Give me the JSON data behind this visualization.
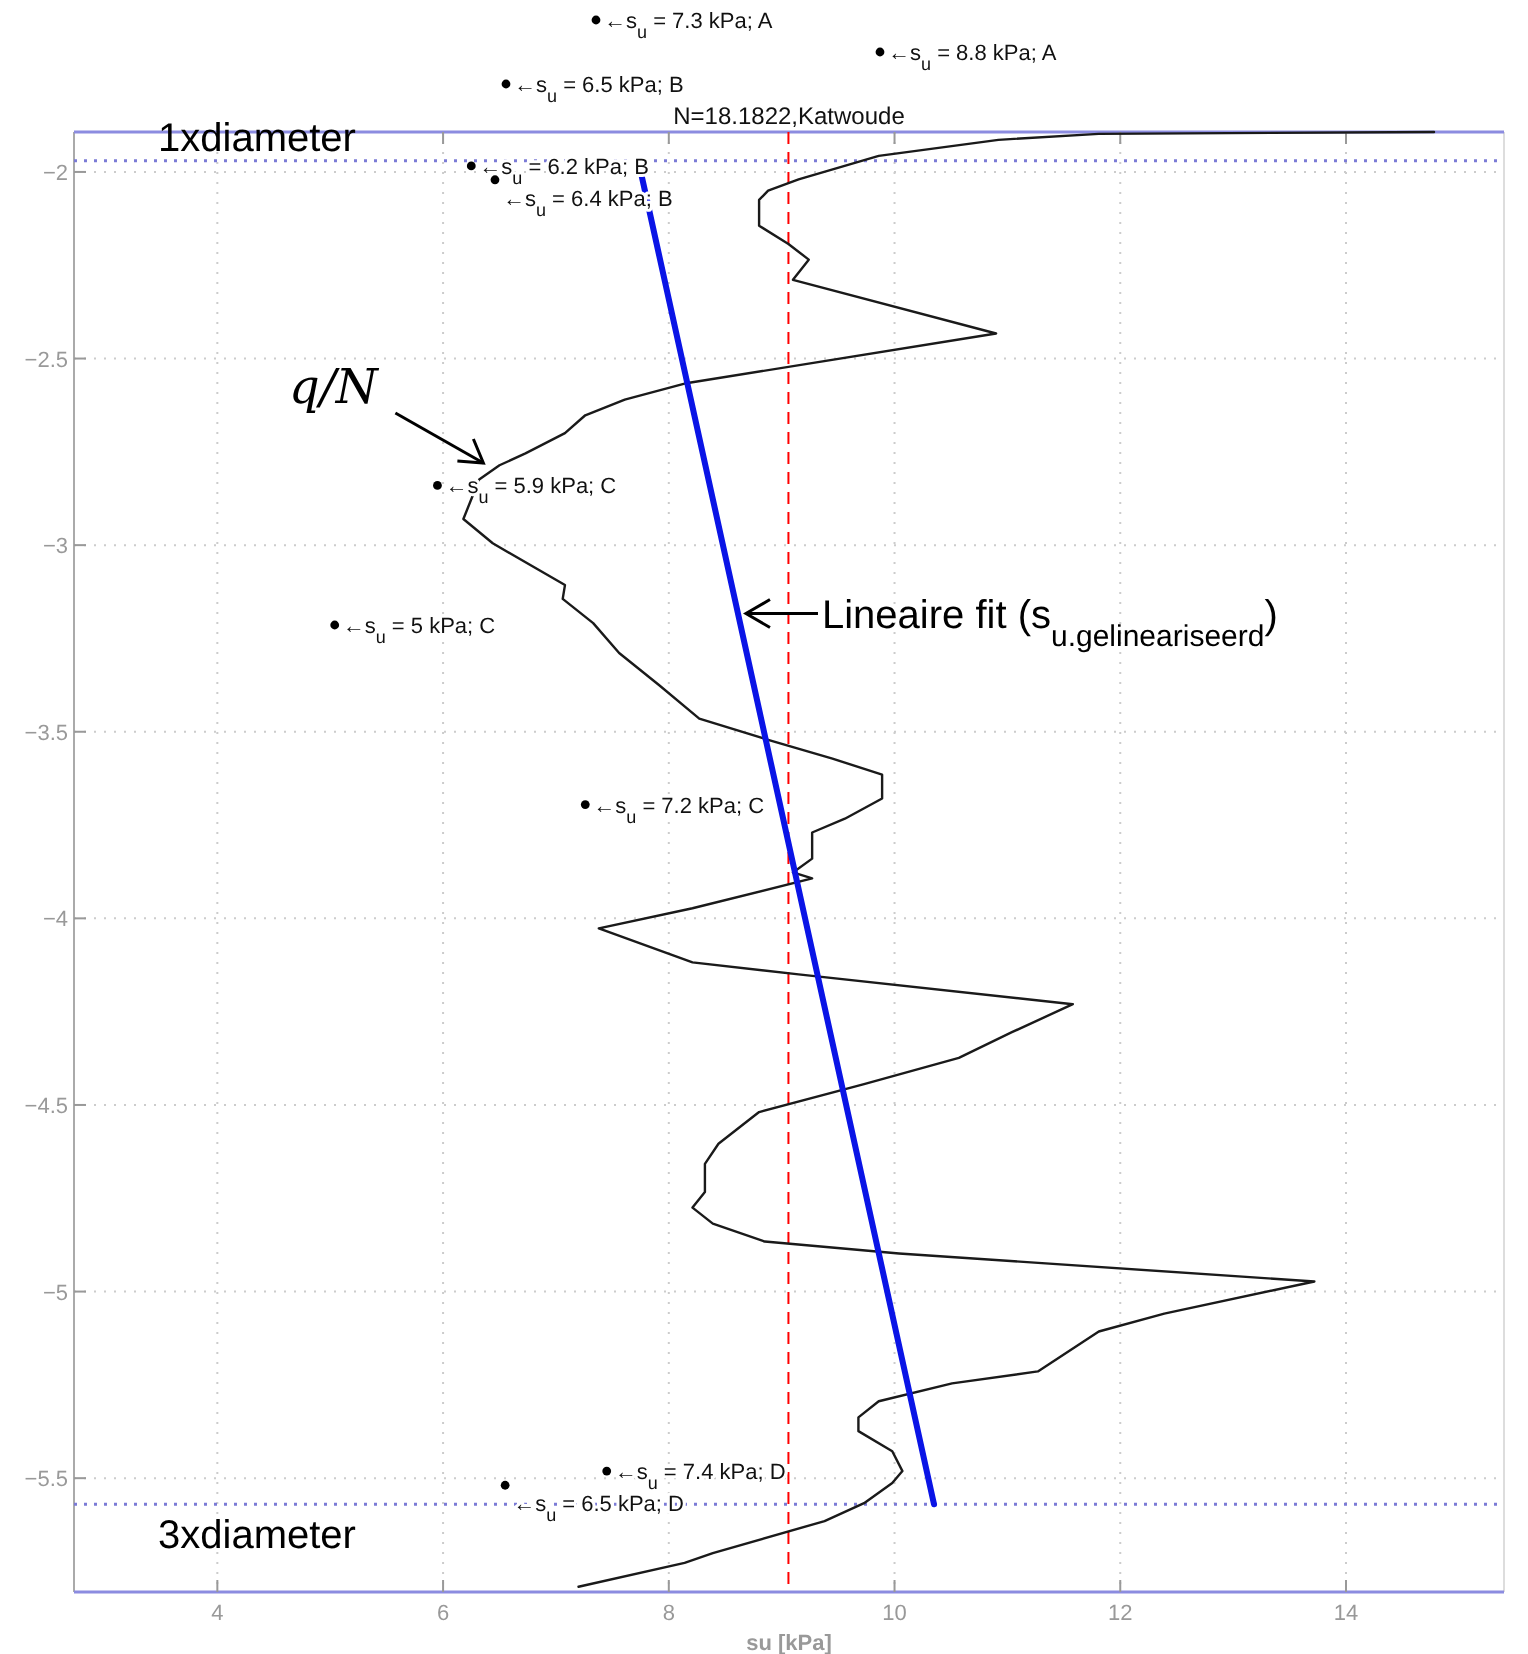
{
  "chart_data": {
    "type": "line",
    "title": "N=18.1822,Katwoude",
    "xlabel": "su [kPa]",
    "xlim": [
      2.73,
      15.4
    ],
    "ylim": [
      -5.805,
      -1.893
    ],
    "xticks": [
      4,
      6,
      8,
      10,
      12,
      14
    ],
    "yticks": [
      -5.5,
      -5,
      -4.5,
      -4,
      -3.5,
      -3,
      -2.5,
      -2
    ],
    "grid": true,
    "marker": "none",
    "series": [
      {
        "name": "q/N",
        "color": "#1a1a1a",
        "line_style": "solid",
        "x": [
          14.78,
          11.81,
          10.92,
          9.86,
          9.15,
          8.88,
          8.8,
          8.8,
          9.06,
          9.24,
          9.1,
          10.9,
          8.14,
          7.61,
          7.26,
          7.08,
          6.73,
          6.5,
          6.32,
          6.18,
          6.44,
          7.08,
          7.06,
          7.33,
          7.56,
          7.91,
          8.27,
          8.85,
          9.45,
          9.89,
          9.89,
          9.56,
          9.27,
          9.27,
          9.1,
          9.27,
          8.21,
          7.38,
          8.21,
          9.15,
          11.58,
          11.04,
          10.57,
          9.73,
          8.8,
          8.44,
          8.32,
          8.32,
          8.21,
          8.39,
          8.85,
          10.04,
          13.72,
          12.39,
          11.81,
          11.27,
          10.51,
          9.86,
          9.68,
          9.68,
          9.98,
          10.07,
          9.98,
          9.73,
          9.38,
          8.39,
          8.14,
          7.2
        ],
        "values": [
          -1.893,
          -1.898,
          -1.914,
          -1.957,
          -2.02,
          -2.05,
          -2.075,
          -2.144,
          -2.193,
          -2.235,
          -2.289,
          -2.433,
          -2.567,
          -2.61,
          -2.652,
          -2.7,
          -2.754,
          -2.786,
          -2.824,
          -2.93,
          -2.995,
          -3.107,
          -3.144,
          -3.209,
          -3.289,
          -3.374,
          -3.465,
          -3.519,
          -3.572,
          -3.615,
          -3.679,
          -3.733,
          -3.77,
          -3.84,
          -3.877,
          -3.893,
          -3.973,
          -4.027,
          -4.118,
          -4.15,
          -4.23,
          -4.305,
          -4.374,
          -4.444,
          -4.519,
          -4.604,
          -4.658,
          -4.733,
          -4.775,
          -4.818,
          -4.866,
          -4.898,
          -4.973,
          -5.059,
          -5.107,
          -5.214,
          -5.246,
          -5.294,
          -5.337,
          -5.374,
          -5.428,
          -5.481,
          -5.513,
          -5.567,
          -5.615,
          -5.701,
          -5.727,
          -5.791
        ]
      },
      {
        "name": "Lineaire fit (s$_{u.gelineariseerd}$)",
        "color": "#0a14e6",
        "line_style": "solid",
        "x": [
          7.73,
          10.35
        ],
        "values": [
          -1.97,
          -5.57
        ]
      }
    ],
    "ref_lines": [
      {
        "axis": "y",
        "value": -1.97,
        "label": "1xdiameter",
        "color": "#7b7bd6",
        "line_style": "dotted"
      },
      {
        "axis": "y",
        "value": -5.57,
        "label": "3xdiameter",
        "color": "#7b7bd6",
        "line_style": "dotted"
      },
      {
        "axis": "x",
        "value": 9.06,
        "color": "#ff0000",
        "line_style": "dashed"
      }
    ],
    "annotations": [
      "←s$_{u}$ = 7.3 kPa; A",
      "←s$_{u}$ = 8.8 kPa; A",
      "←s$_{u}$ = 6.5 kPa; B",
      {
        "text": "←s$_{u}$ = 6.2 kPa; B",
        "x": 6.25,
        "y": -1.984
      },
      {
        "text": "←s$_{u}$ = 6.4 kPa; B",
        "x": 6.46,
        "y": -2.021
      },
      {
        "text": "←s$_{u}$ = 5.9 kPa; C",
        "x": 5.95,
        "y": -2.84
      },
      {
        "text": "←s$_{u}$ = 5 kPa; C",
        "x": 5.04,
        "y": -3.214
      },
      {
        "text": "←s$_{u}$ = 7.2 kPa; C",
        "x": 7.26,
        "y": -3.695
      },
      {
        "text": "←s$_{u}$ = 7.4 kPa; D",
        "x": 7.45,
        "y": -5.481
      },
      {
        "text": "←s$_{u}$ = 6.5 kPa; D",
        "x": 6.55,
        "y": -5.519
      }
    ]
  }
}
